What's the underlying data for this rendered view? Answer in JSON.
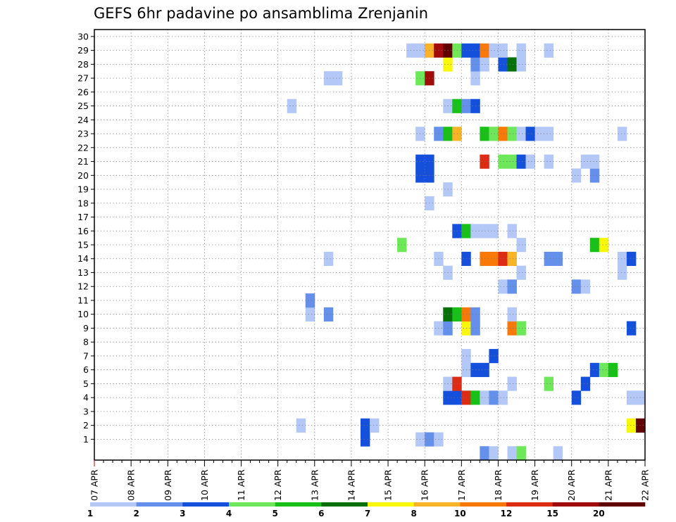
{
  "chart_data": {
    "type": "heatmap",
    "title": "GEFS 6hr padavine po ansamblima Zrenjanin",
    "xlabel": "",
    "ylabel": "",
    "y_ticks": [
      1,
      2,
      3,
      4,
      5,
      6,
      7,
      8,
      9,
      10,
      11,
      12,
      13,
      14,
      15,
      16,
      17,
      18,
      19,
      20,
      21,
      22,
      23,
      24,
      25,
      26,
      27,
      28,
      29,
      30
    ],
    "ylim": [
      0,
      30
    ],
    "x_steps_per_day": 4,
    "xlim_steps": [
      0,
      60
    ],
    "x_ticks": [
      "07 APR",
      "08 APR",
      "09 APR",
      "10 APR",
      "11 APR",
      "12 APR",
      "13 APR",
      "14 APR",
      "15 APR",
      "16 APR",
      "17 APR",
      "18 APR",
      "19 APR",
      "20 APR",
      "21 APR",
      "22 APR"
    ],
    "grid": true,
    "legend": {
      "placement": "bottom",
      "levels": [
        "1",
        "2",
        "3",
        "4",
        "5",
        "6",
        "7",
        "8",
        "10",
        "12",
        "15",
        "20"
      ],
      "colors": [
        "#b4c8f8",
        "#6490ec",
        "#1450dc",
        "#6ee85a",
        "#18c018",
        "#087008",
        "#f8f808",
        "#f8b428",
        "#f87808",
        "#dc2c14",
        "#a00c0c",
        "#600000"
      ]
    },
    "cell_legend": "each cell = [x_step, member, color_level_index]; x_step 0 = 07 APR 00 UTC, 4 steps per day",
    "cells": [
      [
        29,
        1,
        2
      ],
      [
        35,
        1,
        0
      ],
      [
        36,
        1,
        1
      ],
      [
        37,
        1,
        0
      ],
      [
        22,
        2,
        0
      ],
      [
        29,
        2,
        2
      ],
      [
        30,
        2,
        0
      ],
      [
        58,
        2,
        6
      ],
      [
        59,
        2,
        11
      ],
      [
        38,
        4,
        2
      ],
      [
        39,
        4,
        2
      ],
      [
        40,
        4,
        9
      ],
      [
        41,
        4,
        4
      ],
      [
        42,
        4,
        0
      ],
      [
        43,
        4,
        1
      ],
      [
        44,
        4,
        0
      ],
      [
        52,
        4,
        2
      ],
      [
        58,
        4,
        0
      ],
      [
        59,
        4,
        0
      ],
      [
        38,
        5,
        0
      ],
      [
        39,
        5,
        9
      ],
      [
        45,
        5,
        0
      ],
      [
        49,
        5,
        3
      ],
      [
        53,
        5,
        2
      ],
      [
        40,
        6,
        0
      ],
      [
        41,
        6,
        2
      ],
      [
        42,
        6,
        2
      ],
      [
        54,
        6,
        2
      ],
      [
        55,
        6,
        3
      ],
      [
        56,
        6,
        4
      ],
      [
        40,
        7,
        0
      ],
      [
        43,
        7,
        2
      ],
      [
        37,
        9,
        0
      ],
      [
        38,
        9,
        1
      ],
      [
        40,
        9,
        6
      ],
      [
        41,
        9,
        1
      ],
      [
        45,
        9,
        8
      ],
      [
        46,
        9,
        3
      ],
      [
        58,
        9,
        2
      ],
      [
        23,
        10,
        0
      ],
      [
        25,
        10,
        1
      ],
      [
        38,
        10,
        5
      ],
      [
        39,
        10,
        4
      ],
      [
        40,
        10,
        8
      ],
      [
        41,
        10,
        1
      ],
      [
        45,
        10,
        0
      ],
      [
        23,
        11,
        1
      ],
      [
        44,
        12,
        0
      ],
      [
        45,
        12,
        1
      ],
      [
        52,
        12,
        1
      ],
      [
        53,
        12,
        0
      ],
      [
        38,
        13,
        0
      ],
      [
        46,
        13,
        0
      ],
      [
        57,
        13,
        0
      ],
      [
        25,
        14,
        0
      ],
      [
        37,
        14,
        0
      ],
      [
        40,
        14,
        2
      ],
      [
        42,
        14,
        8
      ],
      [
        43,
        14,
        8
      ],
      [
        44,
        14,
        9
      ],
      [
        45,
        14,
        7
      ],
      [
        49,
        14,
        1
      ],
      [
        50,
        14,
        1
      ],
      [
        57,
        14,
        0
      ],
      [
        58,
        14,
        2
      ],
      [
        33,
        15,
        3
      ],
      [
        46,
        15,
        0
      ],
      [
        54,
        15,
        4
      ],
      [
        55,
        15,
        6
      ],
      [
        39,
        16,
        2
      ],
      [
        40,
        16,
        4
      ],
      [
        41,
        16,
        0
      ],
      [
        42,
        16,
        0
      ],
      [
        43,
        16,
        0
      ],
      [
        45,
        16,
        0
      ],
      [
        36,
        18,
        0
      ],
      [
        38,
        19,
        0
      ],
      [
        35,
        20,
        2
      ],
      [
        36,
        20,
        2
      ],
      [
        52,
        20,
        0
      ],
      [
        54,
        20,
        1
      ],
      [
        35,
        21,
        2
      ],
      [
        36,
        21,
        2
      ],
      [
        42,
        21,
        9
      ],
      [
        44,
        21,
        3
      ],
      [
        45,
        21,
        3
      ],
      [
        46,
        21,
        2
      ],
      [
        47,
        21,
        0
      ],
      [
        49,
        21,
        0
      ],
      [
        53,
        21,
        0
      ],
      [
        54,
        21,
        0
      ],
      [
        35,
        23,
        0
      ],
      [
        37,
        23,
        1
      ],
      [
        38,
        23,
        4
      ],
      [
        39,
        23,
        7
      ],
      [
        42,
        23,
        4
      ],
      [
        43,
        23,
        3
      ],
      [
        44,
        23,
        8
      ],
      [
        45,
        23,
        3
      ],
      [
        46,
        23,
        0
      ],
      [
        47,
        23,
        2
      ],
      [
        48,
        23,
        0
      ],
      [
        49,
        23,
        0
      ],
      [
        57,
        23,
        0
      ],
      [
        38,
        25,
        0
      ],
      [
        39,
        25,
        4
      ],
      [
        40,
        25,
        1
      ],
      [
        41,
        25,
        2
      ],
      [
        21,
        25,
        0
      ],
      [
        35,
        27,
        3
      ],
      [
        36,
        27,
        10
      ],
      [
        41,
        27,
        0
      ],
      [
        25,
        27,
        0
      ],
      [
        26,
        27,
        0
      ],
      [
        38,
        28,
        6
      ],
      [
        41,
        28,
        1
      ],
      [
        42,
        28,
        0
      ],
      [
        44,
        28,
        2
      ],
      [
        45,
        28,
        5
      ],
      [
        46,
        28,
        0
      ],
      [
        34,
        29,
        0
      ],
      [
        35,
        29,
        0
      ],
      [
        36,
        29,
        7
      ],
      [
        37,
        29,
        10
      ],
      [
        38,
        29,
        11
      ],
      [
        39,
        29,
        3
      ],
      [
        40,
        29,
        2
      ],
      [
        41,
        29,
        2
      ],
      [
        42,
        29,
        8
      ],
      [
        43,
        29,
        0
      ],
      [
        44,
        29,
        0
      ],
      [
        46,
        29,
        0
      ],
      [
        49,
        29,
        0
      ],
      [
        42,
        0,
        1
      ],
      [
        43,
        0,
        0
      ],
      [
        45,
        0,
        0
      ],
      [
        46,
        0,
        3
      ],
      [
        50,
        0,
        0
      ]
    ]
  }
}
